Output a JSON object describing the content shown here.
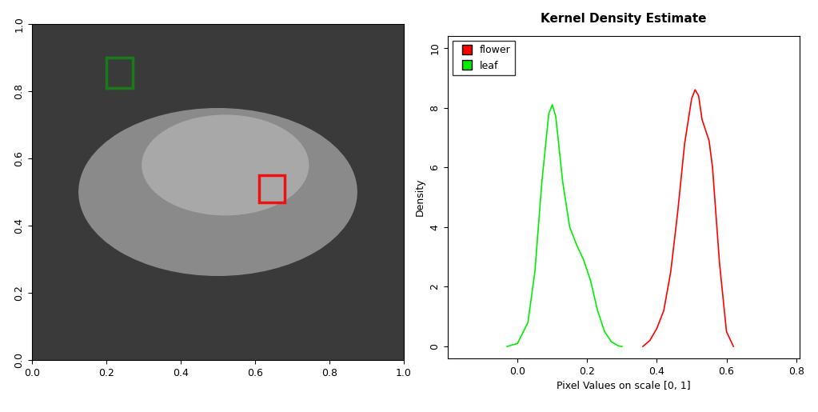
{
  "chart_data": [
    {
      "type": "image",
      "xlim": [
        0,
        1
      ],
      "ylim": [
        0,
        1
      ],
      "xticks": [
        {
          "value": 0,
          "label": "0.0"
        },
        0.2,
        0.4,
        0.6,
        0.8,
        {
          "value": 1,
          "label": "1.0"
        }
      ],
      "yticks": [
        {
          "value": 0,
          "label": "0.0"
        },
        0.2,
        0.4,
        0.6,
        0.8,
        {
          "value": 1,
          "label": "1.0"
        }
      ],
      "rectangles": [
        {
          "name": "leaf",
          "color": "#1a7a1a",
          "x": 0.2,
          "y": 0.81,
          "width": 0.07,
          "height": 0.09
        },
        {
          "name": "flower",
          "color": "#ee1111",
          "x": 0.61,
          "y": 0.47,
          "width": 0.07,
          "height": 0.08
        }
      ]
    },
    {
      "type": "line",
      "title": "Kernel Density Estimate",
      "x_label": "Pixel Values on scale [0, 1]",
      "y_label": "Density",
      "xlim": [
        -0.2,
        0.81
      ],
      "ylim": [
        -0.4,
        10.4
      ],
      "xticks": [
        {
          "value": 0,
          "label": "0.0"
        },
        0.2,
        0.4,
        0.6,
        0.8
      ],
      "yticks": [
        0,
        2,
        4,
        6,
        8,
        10
      ],
      "legend": "upper left",
      "series": [
        {
          "name": "flower",
          "color": "#ff0000",
          "x": [
            0.36,
            0.38,
            0.4,
            0.42,
            0.44,
            0.46,
            0.48,
            0.5,
            0.51,
            0.52,
            0.53,
            0.55,
            0.56,
            0.58,
            0.6,
            0.62
          ],
          "values": [
            0,
            0.2,
            0.6,
            1.2,
            2.5,
            4.5,
            6.8,
            8.3,
            8.6,
            8.4,
            7.6,
            6.9,
            6.0,
            2.8,
            0.5,
            0
          ]
        },
        {
          "name": "leaf",
          "color": "#00ee00",
          "x": [
            -0.03,
            0.0,
            0.03,
            0.05,
            0.07,
            0.09,
            0.1,
            0.11,
            0.13,
            0.15,
            0.17,
            0.19,
            0.21,
            0.23,
            0.25,
            0.27,
            0.29,
            0.3
          ],
          "values": [
            0,
            0.1,
            0.8,
            2.5,
            5.5,
            7.8,
            8.1,
            7.7,
            5.5,
            4.0,
            3.4,
            2.9,
            2.2,
            1.2,
            0.5,
            0.15,
            0.02,
            0
          ]
        }
      ]
    }
  ]
}
